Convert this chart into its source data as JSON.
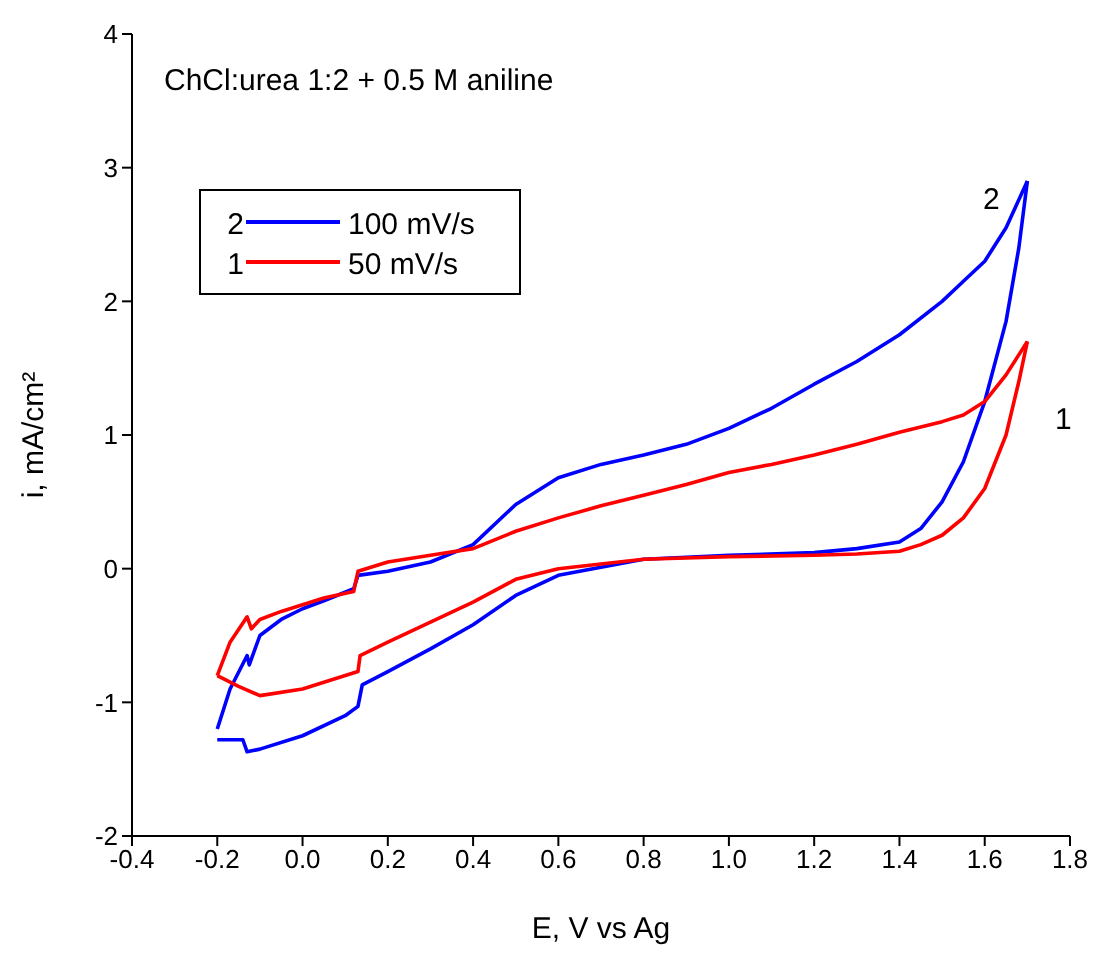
{
  "chart_data": {
    "type": "line",
    "title": "ChCl:urea 1:2 + 0.5 M aniline",
    "xlabel": "E, V vs Ag",
    "ylabel": "i, mA/cm²",
    "xlim": [
      -0.4,
      1.8
    ],
    "xticks": [
      -0.4,
      -0.2,
      {
        "value": 0,
        "label": "0.0"
      },
      0.2,
      0.4,
      0.6,
      0.8,
      {
        "value": 1,
        "label": "1.0"
      },
      1.2,
      1.4,
      1.6,
      1.8
    ],
    "ylim": [
      -2,
      4
    ],
    "yticks": [
      -2,
      -1,
      0,
      1,
      2,
      3,
      4
    ],
    "legend": "top left",
    "marker": "none",
    "line_style": "solid",
    "annotations": [
      "2",
      "1"
    ],
    "series": [
      {
        "name": "100 mV/s",
        "color": "#0000ff",
        "x": [
          -0.2,
          -0.17,
          -0.13,
          -0.125,
          -0.1,
          -0.05,
          0.0,
          0.05,
          0.12,
          0.13,
          0.2,
          0.3,
          0.4,
          0.5,
          0.6,
          0.7,
          0.8,
          0.9,
          1.0,
          1.1,
          1.2,
          1.3,
          1.4,
          1.5,
          1.55,
          1.6,
          1.65,
          1.7
        ],
        "values": [
          -1.2,
          -0.9,
          -0.65,
          -0.72,
          -0.5,
          -0.38,
          -0.3,
          -0.24,
          -0.15,
          -0.05,
          -0.02,
          0.05,
          0.18,
          0.48,
          0.68,
          0.78,
          0.85,
          0.93,
          1.05,
          1.2,
          1.38,
          1.55,
          1.75,
          2.0,
          2.15,
          2.3,
          2.55,
          2.9
        ]
      },
      {
        "color": "#0000ff",
        "x": [
          1.7,
          1.68,
          1.65,
          1.6,
          1.55,
          1.5,
          1.45,
          1.4,
          1.3,
          1.2,
          1.0,
          0.8,
          0.6,
          0.5,
          0.4,
          0.3,
          0.2,
          0.14,
          0.13,
          0.1,
          0.0,
          -0.1,
          -0.13,
          -0.14,
          -0.2
        ],
        "values": [
          2.9,
          2.4,
          1.85,
          1.25,
          0.8,
          0.5,
          0.3,
          0.2,
          0.15,
          0.12,
          0.1,
          0.07,
          -0.05,
          -0.2,
          -0.42,
          -0.6,
          -0.77,
          -0.87,
          -1.03,
          -1.1,
          -1.25,
          -1.35,
          -1.37,
          -1.28,
          -1.28
        ]
      },
      {
        "name": "50 mV/s",
        "color": "#ff0000",
        "x": [
          -0.2,
          -0.17,
          -0.13,
          -0.12,
          -0.1,
          -0.05,
          0.0,
          0.05,
          0.12,
          0.13,
          0.2,
          0.3,
          0.4,
          0.5,
          0.6,
          0.7,
          0.8,
          0.9,
          1.0,
          1.1,
          1.2,
          1.3,
          1.4,
          1.5,
          1.55,
          1.6,
          1.65,
          1.7
        ],
        "values": [
          -0.8,
          -0.55,
          -0.36,
          -0.45,
          -0.38,
          -0.32,
          -0.27,
          -0.22,
          -0.17,
          -0.02,
          0.05,
          0.1,
          0.15,
          0.28,
          0.38,
          0.47,
          0.55,
          0.63,
          0.72,
          0.78,
          0.85,
          0.93,
          1.02,
          1.1,
          1.15,
          1.25,
          1.45,
          1.7
        ]
      },
      {
        "color": "#ff0000",
        "x": [
          1.7,
          1.68,
          1.65,
          1.6,
          1.55,
          1.5,
          1.45,
          1.4,
          1.3,
          1.2,
          1.0,
          0.8,
          0.6,
          0.5,
          0.4,
          0.3,
          0.2,
          0.135,
          0.13,
          0.05,
          0.0,
          -0.1,
          -0.15,
          -0.2
        ],
        "values": [
          1.7,
          1.4,
          1.0,
          0.6,
          0.38,
          0.25,
          0.18,
          0.13,
          0.11,
          0.1,
          0.09,
          0.07,
          0.0,
          -0.08,
          -0.25,
          -0.4,
          -0.55,
          -0.65,
          -0.77,
          -0.85,
          -0.9,
          -0.95,
          -0.88,
          -0.8
        ]
      }
    ]
  }
}
